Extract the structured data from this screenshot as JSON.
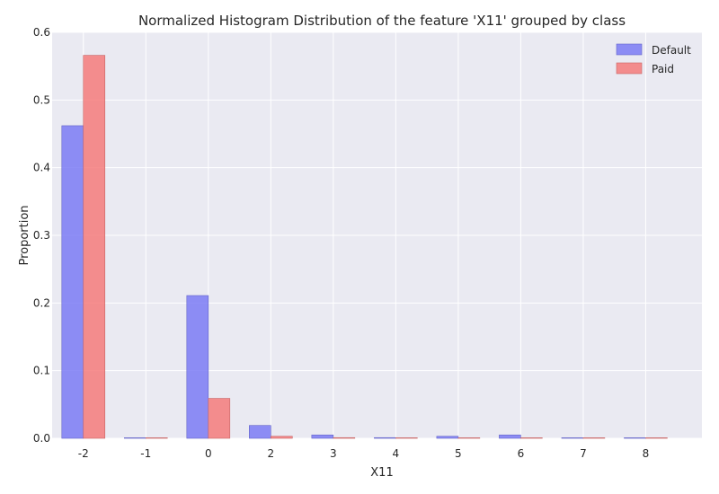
{
  "chart_data": {
    "type": "bar",
    "title": "Normalized Histogram Distribution of the feature 'X11' grouped by class",
    "xlabel": "X11",
    "ylabel": "Proportion",
    "categories": [
      "-2",
      "-1",
      "0",
      "2",
      "3",
      "4",
      "5",
      "6",
      "7",
      "8"
    ],
    "series": [
      {
        "name": "Default",
        "color": "#7b7bf5",
        "values": [
          0.462,
          0.0005,
          0.211,
          0.019,
          0.005,
          0.001,
          0.003,
          0.005,
          0.0003,
          0.0003
        ]
      },
      {
        "name": "Paid",
        "color": "#f57b7b",
        "values": [
          0.566,
          0.0003,
          0.059,
          0.003,
          0.001,
          0.0003,
          0.0003,
          0.0003,
          0.0003,
          0.0003
        ]
      }
    ],
    "ylim": [
      0,
      0.6
    ],
    "yticks": [
      "0.0",
      "0.1",
      "0.2",
      "0.3",
      "0.4",
      "0.5",
      "0.6"
    ],
    "grid": true,
    "legend_position": "top-right",
    "background_color": "#eaeaf2",
    "grid_color": "#ffffff"
  }
}
